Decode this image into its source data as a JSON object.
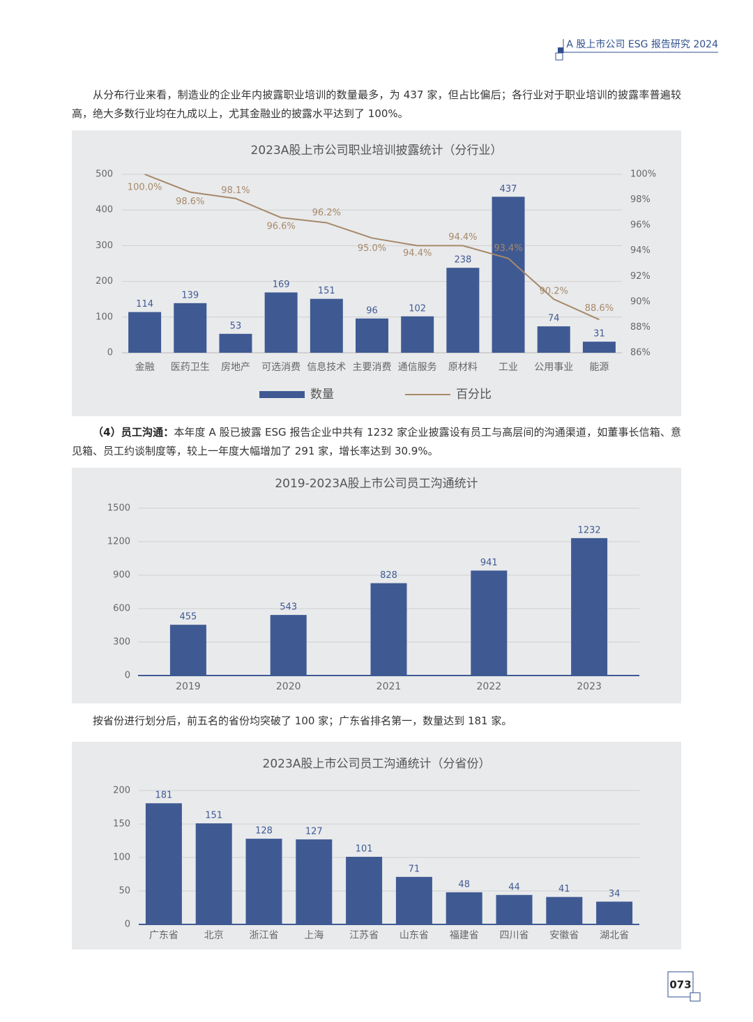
{
  "header": {
    "title": "A 股上市公司 ESG 报告研究 2024"
  },
  "paragraphs": [
    {
      "text": "从分布行业来看，制造业的企业年内披露职业培训的数量最多，为 437 家，但占比偏后；各行业对于职业培训的披露率普遍较高，绝大多数行业均在九成以上，尤其金融业的披露水平达到了 100%。"
    },
    {
      "lead": "（4）员工沟通：",
      "text": "本年度 A 股已披露 ESG 报告企业中共有 1232 家企业披露设有员工与高层间的沟通渠道，如董事长信箱、意见箱、员工约谈制度等，较上一年度大幅增加了 291 家，增长率达到 30.9%。"
    },
    {
      "text": "按省份进行划分后，前五名的省份均突破了 100 家；广东省排名第一，数量达到 181 家。"
    }
  ],
  "chart_data": [
    {
      "type": "bar",
      "title": "2023A股上市公司职业培训披露统计（分行业）",
      "categories": [
        "金融",
        "医药卫生",
        "房地产",
        "可选消费",
        "信息技术",
        "主要消费",
        "通信服务",
        "原材料",
        "工业",
        "公用事业",
        "能源"
      ],
      "series": [
        {
          "name": "数量",
          "color": "#3f5a93",
          "values": [
            114,
            139,
            53,
            169,
            151,
            96,
            102,
            238,
            437,
            74,
            31
          ]
        },
        {
          "name": "百分比",
          "type": "line",
          "axis": "y2",
          "color": "#a6896a",
          "values": [
            100.0,
            98.6,
            98.1,
            96.6,
            96.2,
            95.0,
            94.4,
            94.4,
            93.4,
            90.2,
            88.6
          ],
          "value_labels": [
            "100.0%",
            "98.6%",
            "98.1%",
            "96.6%",
            "96.2%",
            "95.0%",
            "94.4%",
            "94.4%",
            "93.4%",
            "90.2%",
            "88.6%"
          ]
        }
      ],
      "ylim": [
        0,
        500
      ],
      "yticks": [
        0,
        100,
        200,
        300,
        400,
        500
      ],
      "y2lim": [
        86,
        100
      ],
      "y2ticks": [
        {
          "value": 86,
          "label": "86%"
        },
        {
          "value": 88,
          "label": "88%"
        },
        {
          "value": 90,
          "label": "90%"
        },
        {
          "value": 92,
          "label": "92%"
        },
        {
          "value": 94,
          "label": "94%"
        },
        {
          "value": 96,
          "label": "96%"
        },
        {
          "value": 98,
          "label": "98%"
        },
        {
          "value": 100,
          "label": "100%"
        }
      ],
      "grid": true,
      "legend": "bottom"
    },
    {
      "type": "bar",
      "title": "2019-2023A股上市公司员工沟通统计",
      "categories": [
        "2019",
        "2020",
        "2021",
        "2022",
        "2023"
      ],
      "values": [
        455,
        543,
        828,
        941,
        1232
      ],
      "color": "#3f5a93",
      "ylim": [
        0,
        1500
      ],
      "yticks": [
        0,
        300,
        600,
        900,
        1200,
        1500
      ],
      "grid": true
    },
    {
      "type": "bar",
      "title": "2023A股上市公司员工沟通统计（分省份）",
      "categories": [
        "广东省",
        "北京",
        "浙江省",
        "上海",
        "江苏省",
        "山东省",
        "福建省",
        "四川省",
        "安徽省",
        "湖北省"
      ],
      "values": [
        181,
        151,
        128,
        127,
        101,
        71,
        48,
        44,
        41,
        34
      ],
      "color": "#3f5a93",
      "ylim": [
        0,
        200
      ],
      "yticks": [
        0,
        50,
        100,
        150,
        200
      ],
      "grid": true
    }
  ],
  "page_number": "073"
}
